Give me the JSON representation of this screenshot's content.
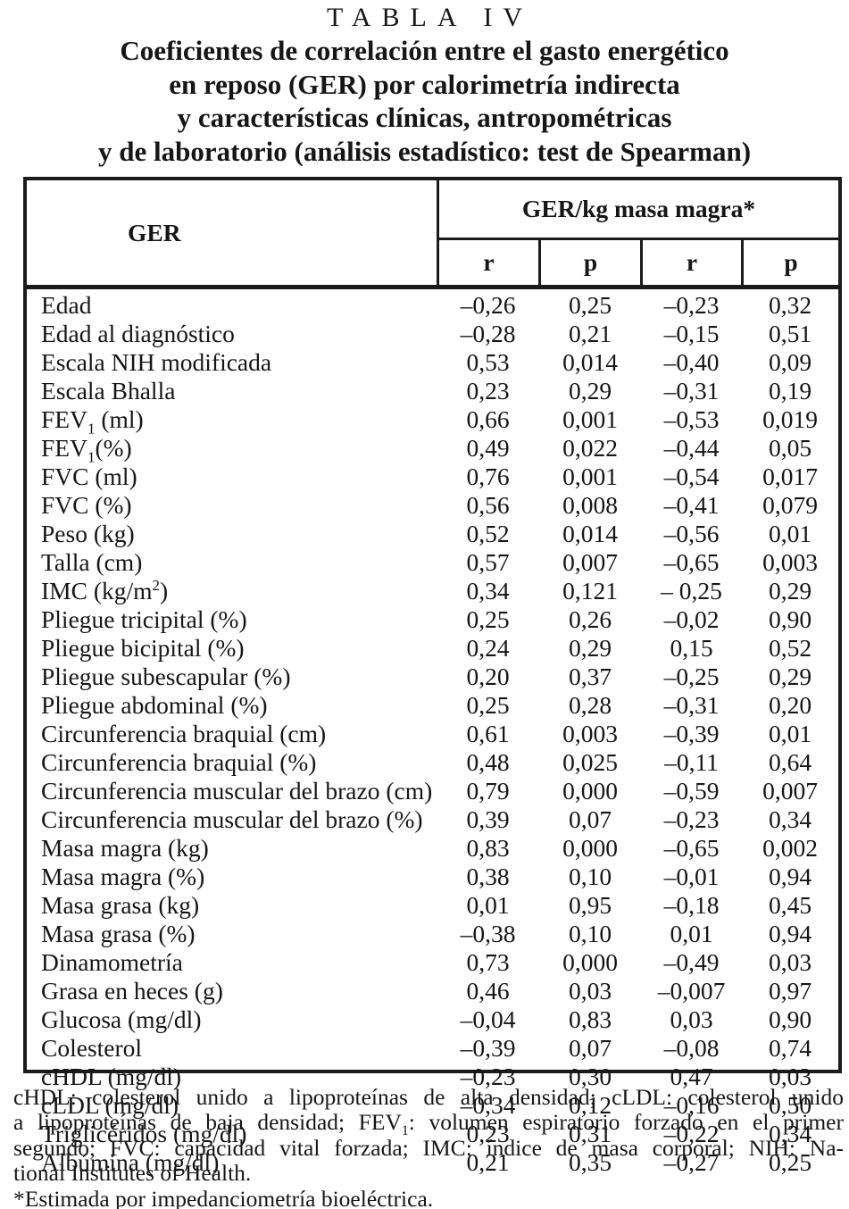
{
  "caption": {
    "label": "TABLA IV",
    "title_lines": [
      "Coeficientes de correlación entre el gasto energético",
      "en reposo (GER) por calorimetría indirecta",
      "y características clínicas, antropométricas",
      "y de laboratorio (análisis estadístico: test de Spearman)"
    ]
  },
  "table": {
    "ger_header": "GER",
    "group_header": "GER/kg masa magra*",
    "sub_headers": [
      "r",
      "p",
      "r",
      "p"
    ],
    "rows": [
      {
        "label": "Edad",
        "values": [
          "–0,26",
          "0,25",
          "–0,23",
          "0,32"
        ]
      },
      {
        "label": "Edad al diagnóstico",
        "values": [
          "–0,28",
          "0,21",
          "–0,15",
          "0,51"
        ]
      },
      {
        "label": "Escala NIH modificada",
        "values": [
          "0,53",
          "0,014",
          "–0,40",
          "0,09"
        ]
      },
      {
        "label": "Escala Bhalla",
        "values": [
          "0,23",
          "0,29",
          "–0,31",
          "0,19"
        ]
      },
      {
        "label": "FEV~1~ (ml)",
        "values": [
          "0,66",
          "0,001",
          "–0,53",
          "0,019"
        ]
      },
      {
        "label": "FEV~1~(%)",
        "values": [
          "0,49",
          "0,022",
          "–0,44",
          "0,05"
        ]
      },
      {
        "label": "FVC (ml)",
        "values": [
          "0,76",
          "0,001",
          "–0,54",
          "0,017"
        ]
      },
      {
        "label": "FVC (%)",
        "values": [
          "0,56",
          "0,008",
          "–0,41",
          "0,079"
        ]
      },
      {
        "label": "Peso (kg)",
        "values": [
          "0,52",
          "0,014",
          "–0,56",
          "0,01"
        ]
      },
      {
        "label": "Talla (cm)",
        "values": [
          "0,57",
          "0,007",
          "–0,65",
          "0,003"
        ]
      },
      {
        "label": "IMC (kg/m^2^)",
        "values": [
          "0,34",
          "0,121",
          "– 0,25",
          "0,29"
        ]
      },
      {
        "label": "Pliegue tricipital (%)",
        "values": [
          "0,25",
          "0,26",
          "–0,02",
          "0,90"
        ]
      },
      {
        "label": "Pliegue bicipital (%)",
        "values": [
          "0,24",
          "0,29",
          "0,15",
          "0,52"
        ]
      },
      {
        "label": "Pliegue subescapular (%)",
        "values": [
          "0,20",
          "0,37",
          "–0,25",
          "0,29"
        ]
      },
      {
        "label": "Pliegue abdominal (%)",
        "values": [
          "0,25",
          "0,28",
          "–0,31",
          "0,20"
        ]
      },
      {
        "label": "Circunferencia braquial (cm)",
        "values": [
          "0,61",
          "0,003",
          "–0,39",
          "0,01"
        ]
      },
      {
        "label": "Circunferencia braquial (%)",
        "values": [
          "0,48",
          "0,025",
          "–0,11",
          "0,64"
        ]
      },
      {
        "label": "Circunferencia muscular del brazo (cm)",
        "values": [
          "0,79",
          "0,000",
          "–0,59",
          "0,007"
        ]
      },
      {
        "label": "Circunferencia muscular del brazo (%)",
        "values": [
          "0,39",
          "0,07",
          "–0,23",
          "0,34"
        ]
      },
      {
        "label": "Masa magra (kg)",
        "values": [
          "0,83",
          "0,000",
          "–0,65",
          "0,002"
        ]
      },
      {
        "label": "Masa magra (%)",
        "values": [
          "0,38",
          "0,10",
          "–0,01",
          "0,94"
        ]
      },
      {
        "label": "Masa grasa (kg)",
        "values": [
          "0,01",
          "0,95",
          "–0,18",
          "0,45"
        ]
      },
      {
        "label": "Masa grasa (%)",
        "values": [
          "–0,38",
          "0,10",
          "0,01",
          "0,94"
        ]
      },
      {
        "label": "Dinamometría",
        "values": [
          "0,73",
          "0,000",
          "–0,49",
          "0,03"
        ]
      },
      {
        "label": "Grasa en heces (g)",
        "values": [
          "0,46",
          "0,03",
          "–0,007",
          "0,97"
        ]
      },
      {
        "label": "Glucosa (mg/dl)",
        "values": [
          "–0,04",
          "0,83",
          "0,03",
          "0,90"
        ]
      },
      {
        "label": "Colesterol",
        "values": [
          "–0,39",
          "0,07",
          "–0,08",
          "0,74"
        ]
      },
      {
        "label": "cHDL (mg/dl)",
        "values": [
          "–0,23",
          "0,30",
          "0,47",
          "0,03"
        ]
      },
      {
        "label": "cLDL (mg/dl)",
        "values": [
          "–0,34",
          "0,12",
          "–0,16",
          "0,50"
        ]
      },
      {
        "label": "Triglicéridos (mg/dl)",
        "values": [
          "0,23",
          "0,31",
          "–0,22",
          "0,34"
        ]
      },
      {
        "label": "Albúmina (mg/dl)",
        "values": [
          "0,21",
          "0,35",
          "–0,27",
          "0,25"
        ]
      }
    ]
  },
  "footnote": {
    "lines": [
      "cHDL: colesterol unido a lipoproteínas de alta densidad; cLDL: colesterol unido",
      "a lipoproteínas de baja densidad; FEV~1~: volumen espiratorio forzado en el primer",
      "segundo; FVC: capacidad vital forzada; IMC: índice de masa corporal; NIH: Na-",
      "tional Institutes of Health."
    ],
    "note": "*Estimada por impedanciometría bioeléctrica."
  },
  "colors": {
    "text": "#161616",
    "border": "#1b1b1b",
    "background": "#ffffff"
  }
}
